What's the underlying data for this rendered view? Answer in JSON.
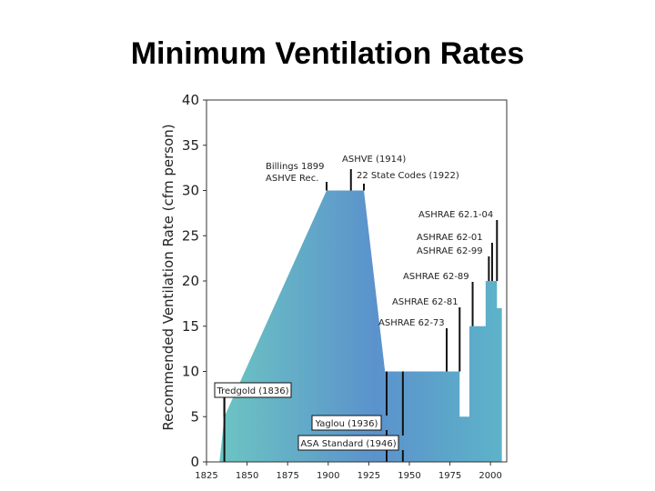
{
  "chart_data": {
    "type": "area",
    "title": "Minimum Ventilation Rates",
    "ylabel": "Recommended Ventilation Rate (cfm person)",
    "xlabel": "",
    "xlim": [
      1825,
      2010
    ],
    "ylim": [
      0,
      40
    ],
    "xticks": [
      1825,
      1850,
      1875,
      1900,
      1925,
      1950,
      1975,
      2000
    ],
    "yticks": [
      0,
      5,
      10,
      15,
      20,
      25,
      30,
      35,
      40
    ],
    "grid": false,
    "series": [
      {
        "x": [
          1833,
          1836,
          1899,
          1922,
          1935,
          1981,
          1981,
          1987,
          1987,
          1997,
          1997,
          2004,
          2004,
          2007
        ],
        "y": [
          0,
          5,
          30,
          30,
          10,
          10,
          5,
          5,
          15,
          15,
          20,
          20,
          17,
          17
        ]
      }
    ],
    "annotations": [
      {
        "lines": [
          "Billings 1899",
          "ASHVE Rec."
        ],
        "x": 1899,
        "y": 30
      },
      {
        "lines": [
          "ASHVE (1914)"
        ],
        "x": 1914,
        "y": 30
      },
      {
        "lines": [
          "22 State Codes (1922)"
        ],
        "x": 1922,
        "y": 30
      },
      {
        "lines": [
          "ASHRAE 62.1-04"
        ],
        "x": 2004,
        "y": 20
      },
      {
        "lines": [
          "ASHRAE 62-01"
        ],
        "x": 2001,
        "y": 20
      },
      {
        "lines": [
          "ASHRAE 62-99"
        ],
        "x": 1999,
        "y": 20
      },
      {
        "lines": [
          "ASHRAE 62-89"
        ],
        "x": 1989,
        "y": 15
      },
      {
        "lines": [
          "ASHRAE 62-81"
        ],
        "x": 1981,
        "y": 10
      },
      {
        "lines": [
          "ASHRAE 62-73"
        ],
        "x": 1973,
        "y": 10
      },
      {
        "lines": [
          "Tredgold (1836)"
        ],
        "x": 1836,
        "y": 5,
        "boxed": true
      },
      {
        "lines": [
          "Yaglou (1936)"
        ],
        "x": 1936,
        "y": 10,
        "boxed": true
      },
      {
        "lines": [
          "ASA Standard (1946)"
        ],
        "x": 1946,
        "y": 10,
        "boxed": true
      }
    ],
    "colors": {
      "gradient_start": "#6cc5c2",
      "gradient_end": "#5b8fca",
      "axis": "#333333"
    }
  }
}
